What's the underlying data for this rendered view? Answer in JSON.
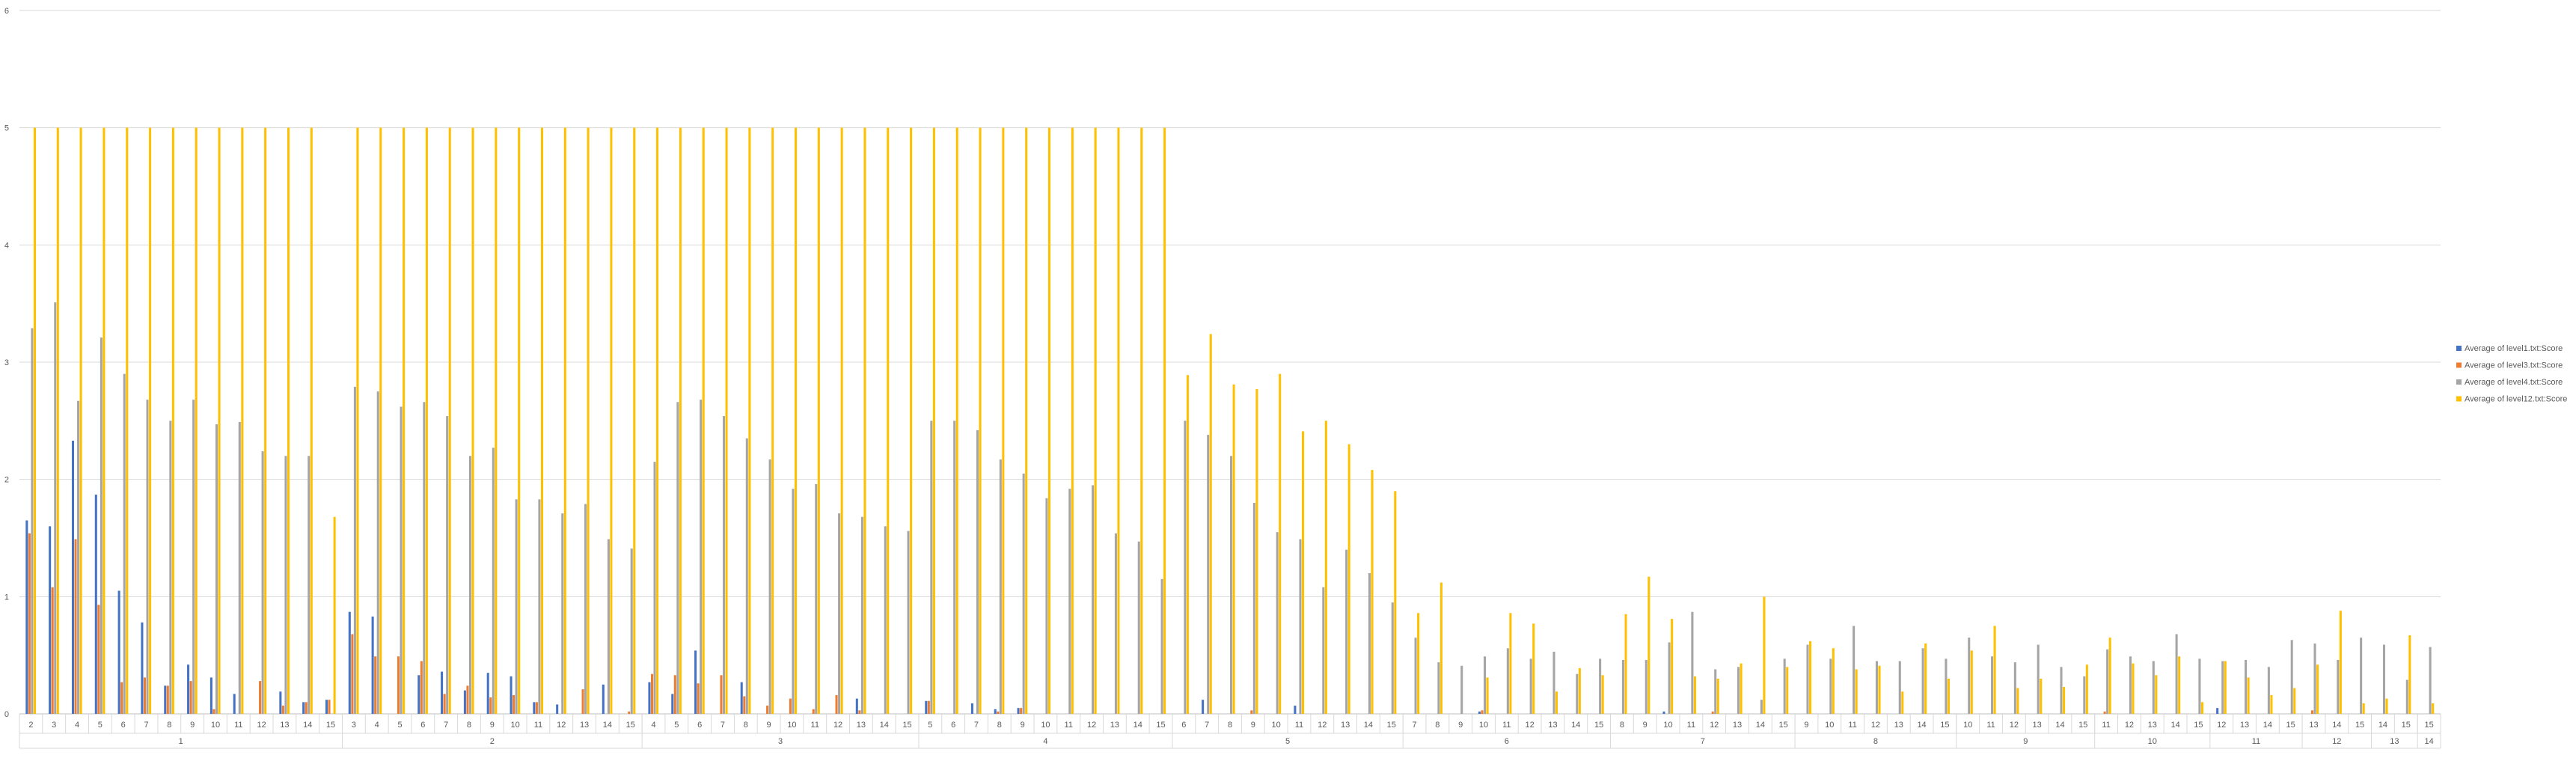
{
  "chart_data": {
    "type": "bar",
    "title": "",
    "xlabel": "",
    "ylabel": "",
    "ylim": [
      0,
      6
    ],
    "yticks": [
      0,
      1,
      2,
      3,
      4,
      5,
      6
    ],
    "grid": true,
    "legend_position": "right",
    "series": [
      {
        "name": "Average of level1.txt:Score",
        "color": "#4472C4"
      },
      {
        "name": "Average of level3.txt:Score",
        "color": "#ED7D31"
      },
      {
        "name": "Average of level4.txt:Score",
        "color": "#A5A5A5"
      },
      {
        "name": "Average of level12.txt:Score",
        "color": "#FFC000"
      }
    ],
    "groups": [
      {
        "label": "1",
        "categories": [
          "2",
          "3",
          "4",
          "5",
          "6",
          "7",
          "8",
          "9",
          "10",
          "11",
          "12",
          "13",
          "14",
          "15"
        ],
        "values": [
          [
            1.65,
            1.6,
            2.33,
            1.87,
            1.05,
            0.78,
            0.24,
            0.42,
            0.31,
            0.17,
            0.0,
            0.19,
            0.1,
            0.12
          ],
          [
            1.54,
            1.08,
            1.49,
            0.93,
            0.27,
            0.31,
            0.24,
            0.28,
            0.04,
            0.0,
            0.28,
            0.07,
            0.1,
            0.12
          ],
          [
            3.29,
            3.51,
            2.67,
            3.21,
            2.9,
            2.68,
            2.5,
            2.68,
            2.47,
            2.49,
            2.24,
            2.2,
            2.2,
            0.0
          ],
          [
            5,
            5,
            5,
            5,
            5,
            5,
            5,
            5,
            5,
            5,
            5,
            5,
            5,
            1.68
          ]
        ]
      },
      {
        "label": "2",
        "categories": [
          "3",
          "4",
          "5",
          "6",
          "7",
          "8",
          "9",
          "10",
          "11",
          "12",
          "13",
          "14",
          "15"
        ],
        "values": [
          [
            0.87,
            0.83,
            0.0,
            0.33,
            0.36,
            0.2,
            0.35,
            0.32,
            0.1,
            0.08,
            0.0,
            0.25,
            0.0
          ],
          [
            0.68,
            0.49,
            0.49,
            0.45,
            0.17,
            0.24,
            0.14,
            0.16,
            0.1,
            0.0,
            0.21,
            0.0,
            0.02
          ],
          [
            2.79,
            2.75,
            2.62,
            2.66,
            2.54,
            2.2,
            2.27,
            1.83,
            1.83,
            1.71,
            1.79,
            1.49,
            1.41
          ],
          [
            5,
            5,
            5,
            5,
            5,
            5,
            5,
            5,
            5,
            5,
            5,
            5,
            5
          ]
        ]
      },
      {
        "label": "3",
        "categories": [
          "4",
          "5",
          "6",
          "7",
          "8",
          "9",
          "10",
          "11",
          "12",
          "13",
          "14",
          "15"
        ],
        "values": [
          [
            0.27,
            0.17,
            0.54,
            0.0,
            0.27,
            0.0,
            0.0,
            0.0,
            0.0,
            0.13,
            0.0,
            0.0
          ],
          [
            0.34,
            0.33,
            0.26,
            0.33,
            0.15,
            0.07,
            0.13,
            0.04,
            0.16,
            0.03,
            0.0,
            0.0
          ],
          [
            2.15,
            2.66,
            2.68,
            2.54,
            2.35,
            2.17,
            1.92,
            1.96,
            1.71,
            1.68,
            1.6,
            1.56
          ],
          [
            5,
            5,
            5,
            5,
            5,
            5,
            5,
            5,
            5,
            5,
            5,
            5
          ]
        ]
      },
      {
        "label": "4",
        "categories": [
          "5",
          "6",
          "7",
          "8",
          "9",
          "10",
          "11",
          "12",
          "13",
          "14",
          "15"
        ],
        "values": [
          [
            0.11,
            0.0,
            0.09,
            0.04,
            0.05,
            0.0,
            0.0,
            0.0,
            0.0,
            0.0,
            0.0
          ],
          [
            0.11,
            0.0,
            0.0,
            0.02,
            0.05,
            0.0,
            0.0,
            0.0,
            0.0,
            0.0,
            0.0
          ],
          [
            2.5,
            2.5,
            2.42,
            2.17,
            2.05,
            1.84,
            1.92,
            1.95,
            1.54,
            1.47,
            1.15
          ],
          [
            5,
            5,
            5,
            5,
            5,
            5,
            5,
            5,
            5,
            5,
            5
          ]
        ]
      },
      {
        "label": "5",
        "categories": [
          "6",
          "7",
          "8",
          "9",
          "10",
          "11",
          "12",
          "13",
          "14",
          "15"
        ],
        "values": [
          [
            0.0,
            0.12,
            0.0,
            0.0,
            0.0,
            0.07,
            0.0,
            0.0,
            0.0,
            0.0
          ],
          [
            0.0,
            0.0,
            0.0,
            0.03,
            0.0,
            0.0,
            0.0,
            0.0,
            0.0,
            0.0
          ],
          [
            2.5,
            2.38,
            2.2,
            1.8,
            1.55,
            1.49,
            1.08,
            1.4,
            1.2,
            0.95
          ],
          [
            2.89,
            3.24,
            2.81,
            2.77,
            2.9,
            2.41,
            2.5,
            2.3,
            2.08,
            1.9
          ]
        ]
      },
      {
        "label": "6",
        "categories": [
          "7",
          "8",
          "9",
          "10",
          "11",
          "12",
          "13",
          "14",
          "15"
        ],
        "values": [
          [
            0.0,
            0.0,
            0.0,
            0.02,
            0.0,
            0.0,
            0.0,
            0.0,
            0.0
          ],
          [
            0.0,
            0.0,
            0.0,
            0.03,
            0.0,
            0.0,
            0.0,
            0.0,
            0.0
          ],
          [
            0.65,
            0.44,
            0.41,
            0.49,
            0.56,
            0.47,
            0.53,
            0.34,
            0.47
          ],
          [
            0.86,
            1.12,
            0.0,
            0.31,
            0.86,
            0.77,
            0.19,
            0.39,
            0.33
          ]
        ]
      },
      {
        "label": "7",
        "categories": [
          "8",
          "9",
          "10",
          "11",
          "12",
          "13",
          "14",
          "15"
        ],
        "values": [
          [
            0.0,
            0.0,
            0.02,
            0.0,
            0.0,
            0.0,
            0.0,
            0.0
          ],
          [
            0.0,
            0.0,
            0.0,
            0.0,
            0.02,
            0.0,
            0.0,
            0.0
          ],
          [
            0.46,
            0.46,
            0.61,
            0.87,
            0.38,
            0.4,
            0.12,
            0.47
          ],
          [
            0.85,
            1.17,
            0.81,
            0.32,
            0.3,
            0.43,
            1.0,
            0.4
          ]
        ]
      },
      {
        "label": "8",
        "categories": [
          "9",
          "10",
          "11",
          "12",
          "13",
          "14",
          "15"
        ],
        "values": [
          [
            0.0,
            0.0,
            0.0,
            0.0,
            0.0,
            0.0,
            0.0
          ],
          [
            0.0,
            0.0,
            0.0,
            0.0,
            0.0,
            0.0,
            0.0
          ],
          [
            0.59,
            0.47,
            0.75,
            0.45,
            0.45,
            0.56,
            0.47
          ],
          [
            0.62,
            0.56,
            0.38,
            0.41,
            0.19,
            0.6,
            0.3
          ]
        ]
      },
      {
        "label": "9",
        "categories": [
          "10",
          "11",
          "12",
          "13",
          "14",
          "15"
        ],
        "values": [
          [
            0.0,
            0.0,
            0.0,
            0.0,
            0.0,
            0.0
          ],
          [
            0.0,
            0.0,
            0.0,
            0.0,
            0.0,
            0.0
          ],
          [
            0.65,
            0.49,
            0.44,
            0.59,
            0.4,
            0.32
          ],
          [
            0.54,
            0.75,
            0.22,
            0.3,
            0.23,
            0.42
          ]
        ]
      },
      {
        "label": "10",
        "categories": [
          "11",
          "12",
          "13",
          "14",
          "15"
        ],
        "values": [
          [
            0.0,
            0.0,
            0.0,
            0.0,
            0.0
          ],
          [
            0.02,
            0.0,
            0.0,
            0.0,
            0.0
          ],
          [
            0.55,
            0.49,
            0.45,
            0.68,
            0.47
          ],
          [
            0.65,
            0.43,
            0.33,
            0.49,
            0.1
          ]
        ]
      },
      {
        "label": "11",
        "categories": [
          "12",
          "13",
          "14",
          "15"
        ],
        "values": [
          [
            0.05,
            0.0,
            0.0,
            0.0
          ],
          [
            0.0,
            0.0,
            0.0,
            0.0
          ],
          [
            0.45,
            0.46,
            0.4,
            0.63
          ],
          [
            0.45,
            0.31,
            0.16,
            0.22
          ]
        ]
      },
      {
        "label": "12",
        "categories": [
          "13",
          "14",
          "15"
        ],
        "values": [
          [
            0.0,
            0.0,
            0.0
          ],
          [
            0.03,
            0.0,
            0.0
          ],
          [
            0.6,
            0.46,
            0.65
          ],
          [
            0.42,
            0.88,
            0.09
          ]
        ]
      },
      {
        "label": "13",
        "categories": [
          "14",
          "15"
        ],
        "values": [
          [
            0.0,
            0.0
          ],
          [
            0.0,
            0.0
          ],
          [
            0.59,
            0.29
          ],
          [
            0.13,
            0.67
          ]
        ]
      },
      {
        "label": "14",
        "categories": [
          "15"
        ],
        "values": [
          [
            0.0
          ],
          [
            0.0
          ],
          [
            0.57
          ],
          [
            0.09
          ]
        ]
      }
    ]
  }
}
